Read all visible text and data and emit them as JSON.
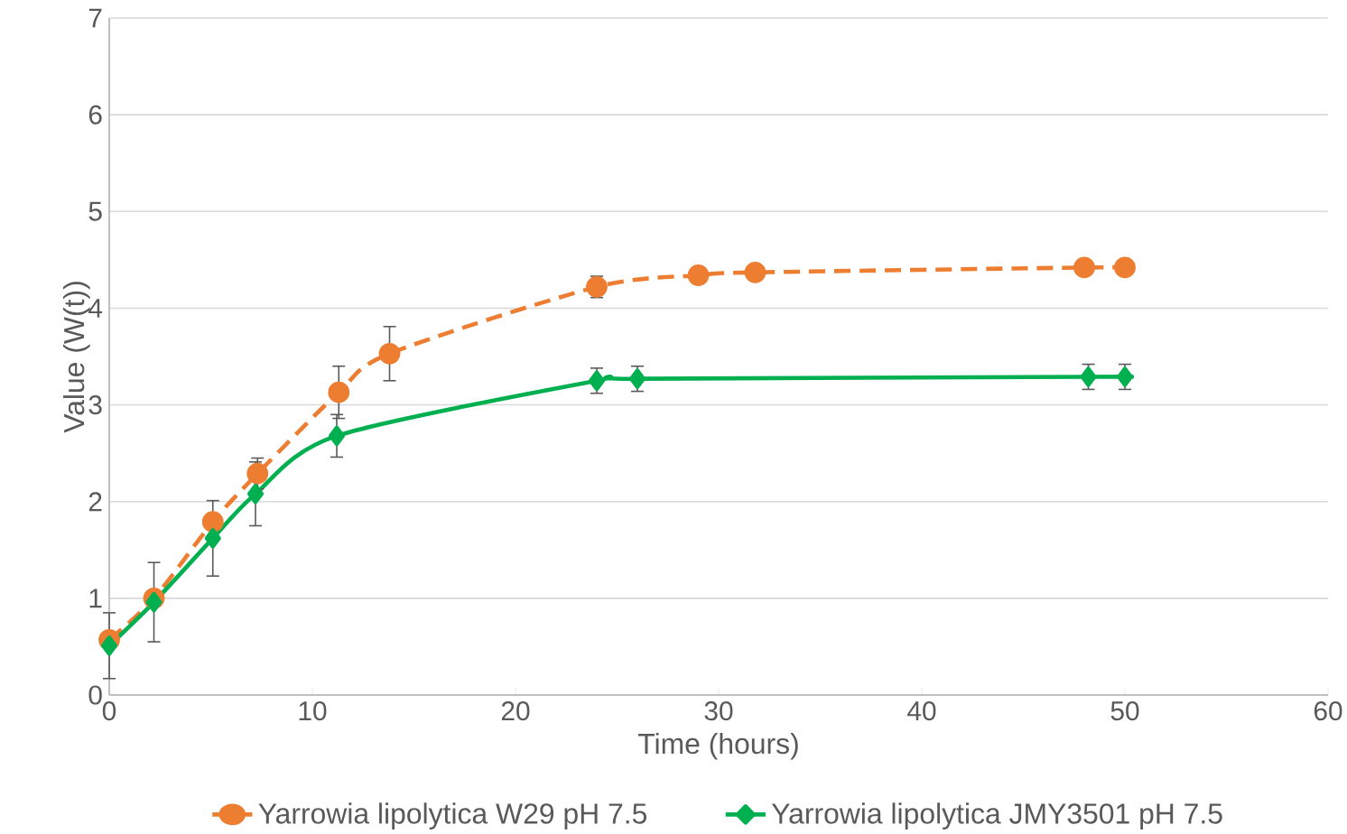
{
  "chart_data": {
    "type": "line",
    "xlabel": "Time (hours)",
    "ylabel": "Value (W(t))",
    "xlim": [
      0,
      60
    ],
    "xticks": [
      0,
      10,
      20,
      30,
      40,
      50,
      60
    ],
    "ylim": [
      0,
      7
    ],
    "yticks": [
      0,
      1,
      2,
      3,
      4,
      5,
      6,
      7
    ],
    "grid": "y",
    "legend": "bottom",
    "series": [
      {
        "name": "Yarrowia lipolytica W29 pH 7.5",
        "color": "#ed7d31",
        "marker": "circle",
        "line_style": "dashed",
        "x": [
          0,
          2.2,
          5.1,
          7.3,
          11.3,
          13.8,
          24,
          29,
          31.8,
          48,
          50
        ],
        "values": [
          0.57,
          1.0,
          1.79,
          2.29,
          3.13,
          3.53,
          4.22,
          4.34,
          4.37,
          4.42,
          4.42
        ],
        "errors": [
          null,
          null,
          null,
          0.16,
          0.27,
          0.28,
          0.11,
          null,
          null,
          null,
          null
        ]
      },
      {
        "name": "Yarrowia lipolytica JMY3501 pH 7.5",
        "color": "#00b050",
        "marker": "diamond",
        "line_style": "solid",
        "x": [
          0,
          2.2,
          5.1,
          7.2,
          11.2,
          24,
          26,
          48.2,
          50
        ],
        "values": [
          0.51,
          0.96,
          1.62,
          2.08,
          2.68,
          3.25,
          3.27,
          3.29,
          3.29
        ],
        "errors": [
          0.34,
          0.41,
          0.39,
          0.33,
          0.22,
          0.13,
          0.13,
          0.13,
          0.13
        ]
      }
    ]
  }
}
